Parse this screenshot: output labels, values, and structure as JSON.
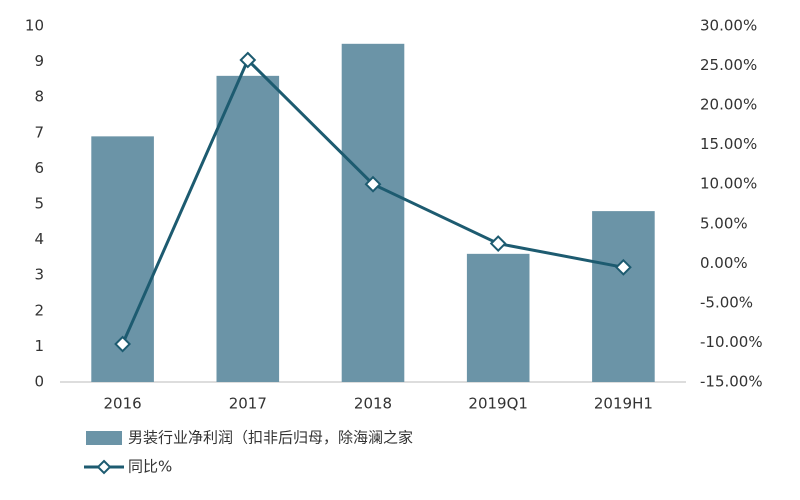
{
  "chart_data": {
    "type": "bar-line",
    "categories": [
      "2016",
      "2017",
      "2018",
      "2019Q1",
      "2019H1"
    ],
    "series": [
      {
        "name": "男装行业净利润（扣非后归母，除海澜之家",
        "type": "bar",
        "color": "#6b94a7",
        "values": [
          6.9,
          8.6,
          9.5,
          3.6,
          4.8
        ]
      },
      {
        "name": "同比%",
        "type": "line",
        "axis": "y2",
        "color": "#1d5b70",
        "values": [
          -10.2,
          25.7,
          10.0,
          2.5,
          -0.5
        ]
      }
    ],
    "ylim": [
      0,
      10
    ],
    "yticks": [
      0,
      1,
      2,
      3,
      4,
      5,
      6,
      7,
      8,
      9,
      10
    ],
    "y2lim": [
      -15,
      30
    ],
    "y2ticks": [
      {
        "value": -15,
        "label": "-15.00%"
      },
      {
        "value": -10,
        "label": "-10.00%"
      },
      {
        "value": -5,
        "label": "-5.00%"
      },
      {
        "value": 0,
        "label": "0.00%"
      },
      {
        "value": 5,
        "label": "5.00%"
      },
      {
        "value": 10,
        "label": "10.00%"
      },
      {
        "value": 15,
        "label": "15.00%"
      },
      {
        "value": 20,
        "label": "20.00%"
      },
      {
        "value": 25,
        "label": "25.00%"
      },
      {
        "value": 30,
        "label": "30.00%"
      }
    ]
  }
}
